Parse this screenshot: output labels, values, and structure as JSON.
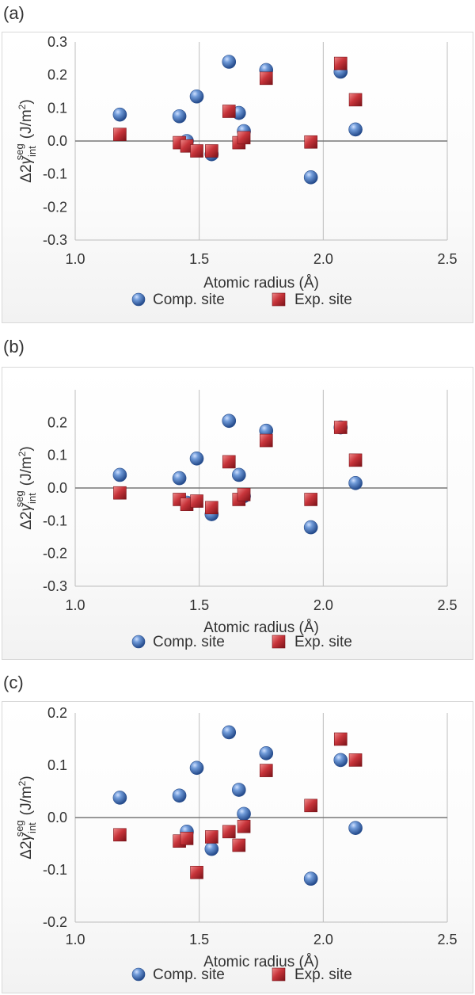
{
  "panels": [
    {
      "tag": "(a)"
    },
    {
      "tag": "(b)"
    },
    {
      "tag": "(c)"
    }
  ],
  "colors": {
    "comp": "#3f6fb8",
    "exp": "#c0353a"
  },
  "chart_data": [
    {
      "type": "scatter",
      "xlabel": "Atomic radius (Å)",
      "ylabel": "Δ2γ_int^seg (J/m²)",
      "xlim": [
        1.0,
        2.5
      ],
      "ylim": [
        -0.3,
        0.3
      ],
      "xticks": [
        "1.0",
        "1.5",
        "2.0",
        "2.5"
      ],
      "yticks": [
        "0.3",
        "0.2",
        "0.1",
        "0.0",
        "-0.1",
        "-0.2",
        "-0.3"
      ],
      "legend_position": "bottom",
      "series": [
        {
          "name": "Comp. site",
          "marker": "circle",
          "x": [
            1.18,
            1.42,
            1.45,
            1.49,
            1.55,
            1.62,
            1.66,
            1.68,
            1.77,
            1.95,
            2.07,
            2.13
          ],
          "y": [
            0.08,
            0.075,
            0.0,
            0.135,
            -0.04,
            0.24,
            0.085,
            0.03,
            0.215,
            -0.11,
            0.21,
            0.035
          ]
        },
        {
          "name": "Exp. site",
          "marker": "square",
          "x": [
            1.18,
            1.42,
            1.45,
            1.49,
            1.55,
            1.62,
            1.66,
            1.68,
            1.77,
            1.95,
            2.07,
            2.13
          ],
          "y": [
            0.02,
            -0.005,
            -0.015,
            -0.03,
            -0.03,
            0.09,
            -0.005,
            0.01,
            0.19,
            -0.003,
            0.235,
            0.125
          ]
        }
      ]
    },
    {
      "type": "scatter",
      "xlabel": "Atomic radius (Å)",
      "ylabel": "Δ2γ_int^seg (J/m²)",
      "xlim": [
        1.0,
        2.5
      ],
      "ylim": [
        -0.3,
        0.3
      ],
      "xticks": [
        "1.0",
        "1.5",
        "2.0",
        "2.5"
      ],
      "yticks": [
        "0.2",
        "0.1",
        "0.0",
        "-0.1",
        "-0.2",
        "-0.3"
      ],
      "legend_position": "bottom",
      "series": [
        {
          "name": "Comp. site",
          "marker": "circle",
          "x": [
            1.18,
            1.42,
            1.45,
            1.49,
            1.55,
            1.62,
            1.66,
            1.68,
            1.77,
            1.95,
            2.07,
            2.13
          ],
          "y": [
            0.04,
            0.03,
            -0.045,
            0.09,
            -0.08,
            0.205,
            0.04,
            -0.025,
            0.175,
            -0.12,
            0.185,
            0.015
          ]
        },
        {
          "name": "Exp. site",
          "marker": "square",
          "x": [
            1.18,
            1.42,
            1.45,
            1.49,
            1.55,
            1.62,
            1.66,
            1.68,
            1.77,
            1.95,
            2.07,
            2.13
          ],
          "y": [
            -0.015,
            -0.035,
            -0.05,
            -0.04,
            -0.06,
            0.08,
            -0.035,
            -0.02,
            0.145,
            -0.035,
            0.185,
            0.085
          ]
        }
      ]
    },
    {
      "type": "scatter",
      "xlabel": "Atomic radius (Å)",
      "ylabel": "Δ2γ_int^seg (J/m²)",
      "xlim": [
        1.0,
        2.5
      ],
      "ylim": [
        -0.2,
        0.2
      ],
      "xticks": [
        "1.0",
        "1.5",
        "2.0",
        "2.5"
      ],
      "yticks": [
        "0.2",
        "0.1",
        "0.0",
        "-0.1",
        "-0.2"
      ],
      "legend_position": "bottom",
      "series": [
        {
          "name": "Comp. site",
          "marker": "circle",
          "x": [
            1.18,
            1.42,
            1.45,
            1.49,
            1.55,
            1.62,
            1.66,
            1.68,
            1.77,
            1.95,
            2.07,
            2.13
          ],
          "y": [
            0.038,
            0.042,
            -0.027,
            0.095,
            -0.06,
            0.163,
            0.053,
            0.007,
            0.123,
            -0.117,
            0.11,
            -0.02
          ]
        },
        {
          "name": "Exp. site",
          "marker": "square",
          "x": [
            1.18,
            1.42,
            1.45,
            1.49,
            1.55,
            1.62,
            1.66,
            1.68,
            1.77,
            1.95,
            2.07,
            2.13
          ],
          "y": [
            -0.033,
            -0.045,
            -0.04,
            -0.105,
            -0.037,
            -0.027,
            -0.053,
            -0.017,
            0.09,
            0.023,
            0.15,
            0.11
          ]
        }
      ]
    }
  ]
}
